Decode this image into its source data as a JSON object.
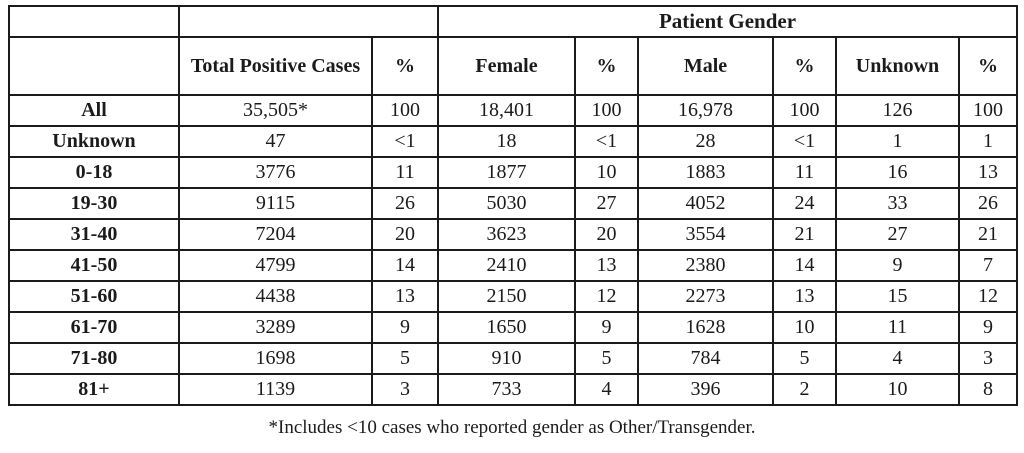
{
  "colors": {
    "border": "#1b1b1b",
    "text": "#1b1b1b",
    "background": "#ffffff"
  },
  "table": {
    "group_header": "Patient Gender",
    "columns": [
      "",
      "Total Positive Cases",
      "%",
      "Female",
      "%",
      "Male",
      "%",
      "Unknown",
      "%"
    ],
    "rows": [
      [
        "All",
        "35,505*",
        "100",
        "18,401",
        "100",
        "16,978",
        "100",
        "126",
        "100"
      ],
      [
        "Unknown",
        "47",
        "<1",
        "18",
        "<1",
        "28",
        "<1",
        "1",
        "1"
      ],
      [
        "0-18",
        "3776",
        "11",
        "1877",
        "10",
        "1883",
        "11",
        "16",
        "13"
      ],
      [
        "19-30",
        "9115",
        "26",
        "5030",
        "27",
        "4052",
        "24",
        "33",
        "26"
      ],
      [
        "31-40",
        "7204",
        "20",
        "3623",
        "20",
        "3554",
        "21",
        "27",
        "21"
      ],
      [
        "41-50",
        "4799",
        "14",
        "2410",
        "13",
        "2380",
        "14",
        "9",
        "7"
      ],
      [
        "51-60",
        "4438",
        "13",
        "2150",
        "12",
        "2273",
        "13",
        "15",
        "12"
      ],
      [
        "61-70",
        "3289",
        "9",
        "1650",
        "9",
        "1628",
        "10",
        "11",
        "9"
      ],
      [
        "71-80",
        "1698",
        "5",
        "910",
        "5",
        "784",
        "5",
        "4",
        "3"
      ],
      [
        "81+",
        "1139",
        "3",
        "733",
        "4",
        "396",
        "2",
        "10",
        "8"
      ]
    ],
    "footnote": "*Includes <10 cases who reported gender as Other/Transgender."
  }
}
